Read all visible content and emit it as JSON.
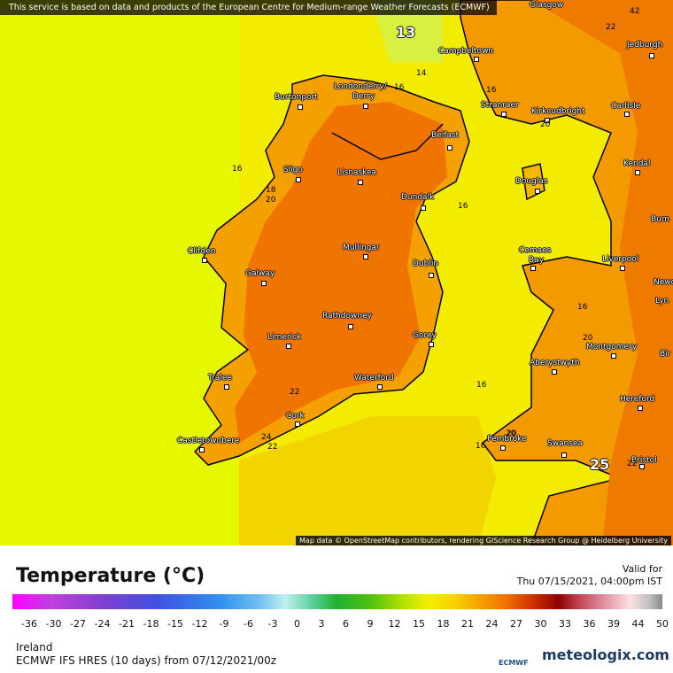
{
  "notice": "This service is based on data and products of the European Centre for Medium-range Weather Forecasts (ECMWF)",
  "attribution": "Map data © OpenStreetMap contributors, rendering GIScience Research Group @ Heidelberg University",
  "places": [
    "Glasgow",
    "Campbeltown",
    "Jedburgh",
    "Burtonport",
    "Londonderry/",
    "Derry",
    "Stranraer",
    "Kirkcudbright",
    "Carlisle",
    "Belfast",
    "Sligo",
    "Lisnaskea",
    "Kendal",
    "Douglas",
    "Dundalk",
    "Burn",
    "Clifden",
    "Mullingar",
    "Cemaes",
    "Bay",
    "Liverpool",
    "Dublin",
    "Galway",
    "Newca",
    "Lyn",
    "Rathdowney",
    "Limerick",
    "Gorey",
    "Montgomery",
    "Bir",
    "Aberystwyth",
    "Tralee",
    "Waterford",
    "Hereford",
    "Cork",
    "Castletownbere",
    "Pembroke",
    "Swansea",
    "Bristol"
  ],
  "contour_labels": [
    13,
    14,
    16,
    16,
    16,
    18,
    20,
    16,
    16,
    20,
    20,
    22,
    24,
    22,
    16,
    16,
    20,
    25,
    22,
    42,
    22,
    20
  ],
  "legend": {
    "title": "Temperature (°C)",
    "valid_label": "Valid for",
    "valid_time": "Thu 07/15/2021, 04:00pm IST",
    "scale": [
      -36,
      -30,
      -27,
      -24,
      -21,
      -18,
      -15,
      -12,
      -9,
      -6,
      -3,
      0,
      3,
      6,
      9,
      12,
      15,
      18,
      21,
      24,
      27,
      30,
      33,
      36,
      39,
      44,
      50
    ]
  },
  "footer": {
    "region": "Ireland",
    "model": "ECMWF IFS HRES (10 days) from 07/12/2021/00z",
    "ecmwf_logo": "ECMWF",
    "brand": "meteologix.com"
  }
}
